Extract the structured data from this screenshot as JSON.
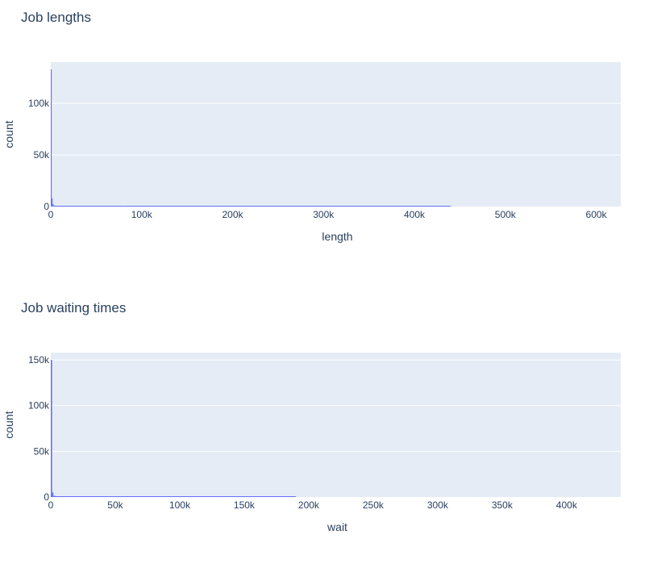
{
  "chart_data": [
    {
      "type": "histogram",
      "title": "Job lengths",
      "xlabel": "length",
      "ylabel": "count",
      "xlim": [
        0,
        627000
      ],
      "ylim": [
        0,
        140000
      ],
      "x_ticks": [
        0,
        100000,
        200000,
        300000,
        400000,
        500000,
        600000
      ],
      "x_tick_labels": [
        "0",
        "100k",
        "200k",
        "300k",
        "400k",
        "500k",
        "600k"
      ],
      "y_ticks": [
        0,
        50000,
        100000
      ],
      "y_tick_labels": [
        "0",
        "50k",
        "100k"
      ],
      "bars": [
        {
          "x0": 0,
          "x1": 1000,
          "count": 133000
        },
        {
          "x0": 1000,
          "x1": 2000,
          "count": 8000
        },
        {
          "x0": 2000,
          "x1": 3000,
          "count": 2500
        },
        {
          "x0": 3000,
          "x1": 6000,
          "count": 900
        },
        {
          "x0": 6000,
          "x1": 80000,
          "count": 250
        },
        {
          "x0": 80000,
          "x1": 180000,
          "count": 120
        },
        {
          "x0": 180000,
          "x1": 440000,
          "count": 40
        }
      ],
      "bar_color": "#636efa"
    },
    {
      "type": "histogram",
      "title": "Job waiting times",
      "xlabel": "wait",
      "ylabel": "count",
      "xlim": [
        0,
        442000
      ],
      "ylim": [
        0,
        158000
      ],
      "x_ticks": [
        0,
        50000,
        100000,
        150000,
        200000,
        250000,
        300000,
        350000,
        400000
      ],
      "x_tick_labels": [
        "0",
        "50k",
        "100k",
        "150k",
        "200k",
        "250k",
        "300k",
        "350k",
        "400k"
      ],
      "y_ticks": [
        0,
        50000,
        100000,
        150000
      ],
      "y_tick_labels": [
        "0",
        "50k",
        "100k",
        "150k"
      ],
      "bars": [
        {
          "x0": 0,
          "x1": 1000,
          "count": 150000
        },
        {
          "x0": 1000,
          "x1": 2000,
          "count": 5000
        },
        {
          "x0": 2000,
          "x1": 4000,
          "count": 1200
        },
        {
          "x0": 4000,
          "x1": 35000,
          "count": 250
        },
        {
          "x0": 35000,
          "x1": 130000,
          "count": 120
        },
        {
          "x0": 130000,
          "x1": 190000,
          "count": 40
        }
      ],
      "bar_color": "#636efa"
    }
  ]
}
